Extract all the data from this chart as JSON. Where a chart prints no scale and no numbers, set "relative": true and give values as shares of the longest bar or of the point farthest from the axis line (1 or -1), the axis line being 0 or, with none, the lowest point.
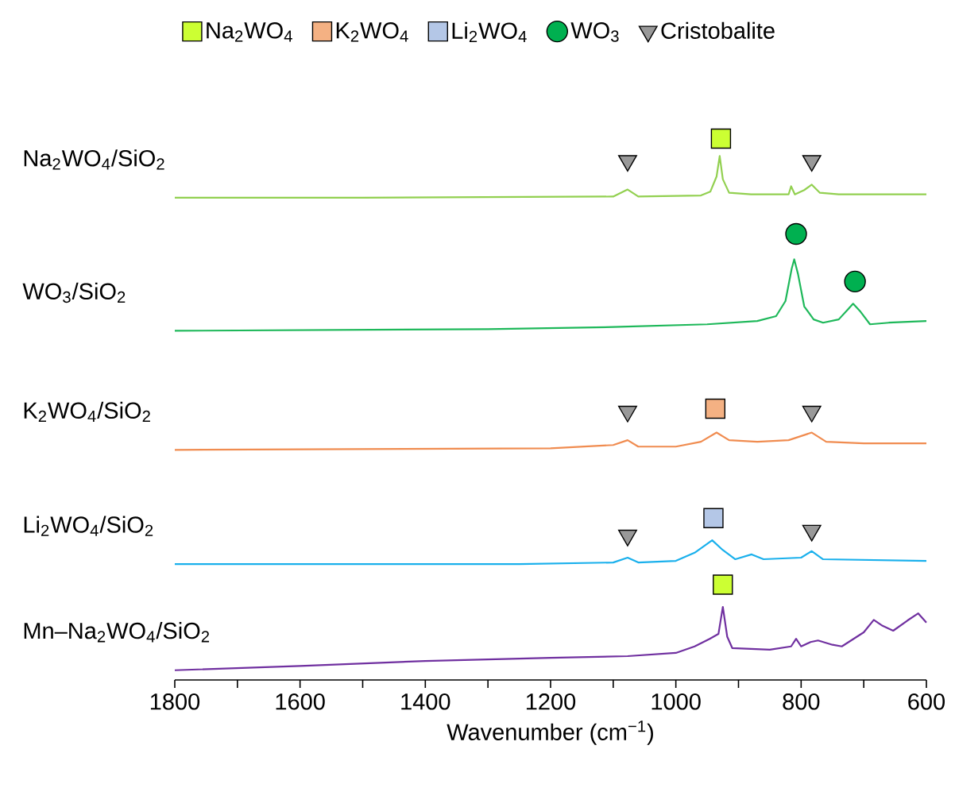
{
  "chart_data": {
    "type": "line",
    "relative": true,
    "xlabel": "Wavenumber (cm$^{−1}$)",
    "xlim": [
      1800,
      600
    ],
    "xticks": [
      1800,
      {
        "value": 1700,
        "label": null
      },
      1600,
      {
        "value": 1500,
        "label": null
      },
      1400,
      {
        "value": 1300,
        "label": null
      },
      1200,
      {
        "value": 1100,
        "label": null
      },
      1000,
      {
        "value": 900,
        "label": null
      },
      800,
      {
        "value": 700,
        "label": null
      },
      600
    ],
    "legend": "top",
    "marker": "none",
    "line_style": "solid",
    "series": [
      {
        "name": "Na$_{2}$WO$_{4}$/SiO$_{2}$",
        "color": "#92d050",
        "x": [
          1800,
          1500,
          1100,
          1077,
          1060,
          960,
          945,
          935,
          930,
          925,
          915,
          880,
          820,
          816,
          810,
          795,
          783,
          770,
          740,
          600
        ],
        "values": [
          0.891,
          0.891,
          0.893,
          0.906,
          0.893,
          0.895,
          0.902,
          0.93,
          0.968,
          0.925,
          0.9,
          0.897,
          0.897,
          0.912,
          0.897,
          0.905,
          0.915,
          0.9,
          0.897,
          0.897
        ]
      },
      {
        "name": "WO$_{3}$/SiO$_{2}$",
        "color": "#1eb85a",
        "x": [
          1800,
          1300,
          1100,
          950,
          870,
          840,
          825,
          815,
          811,
          805,
          795,
          780,
          765,
          740,
          725,
          717,
          705,
          690,
          660,
          600
        ],
        "values": [
          0.645,
          0.648,
          0.652,
          0.657,
          0.663,
          0.672,
          0.7,
          0.76,
          0.777,
          0.75,
          0.69,
          0.666,
          0.66,
          0.666,
          0.685,
          0.695,
          0.68,
          0.657,
          0.66,
          0.663
        ]
      },
      {
        "name": "K$_{2}$WO$_{4}$/SiO$_{2}$",
        "color": "#f08c50",
        "x": [
          1800,
          1200,
          1100,
          1077,
          1060,
          1000,
          960,
          935,
          915,
          870,
          820,
          783,
          760,
          700,
          600
        ],
        "values": [
          0.425,
          0.428,
          0.434,
          0.443,
          0.431,
          0.431,
          0.44,
          0.457,
          0.443,
          0.44,
          0.443,
          0.457,
          0.44,
          0.437,
          0.437
        ]
      },
      {
        "name": "Li$_{2}$WO$_{4}$/SiO$_{2}$",
        "color": "#1ab0ec",
        "x": [
          1800,
          1250,
          1100,
          1077,
          1060,
          1000,
          970,
          942,
          925,
          905,
          879,
          860,
          800,
          783,
          765,
          600
        ],
        "values": [
          0.214,
          0.214,
          0.217,
          0.226,
          0.217,
          0.22,
          0.235,
          0.258,
          0.24,
          0.223,
          0.232,
          0.223,
          0.226,
          0.238,
          0.223,
          0.22
        ]
      },
      {
        "name": "Mn–Na$_{2}$WO$_{4}$/SiO$_{2}$",
        "color": "#7030a0",
        "x": [
          1800,
          1600,
          1400,
          1200,
          1077,
          1000,
          970,
          946,
          932,
          925,
          918,
          910,
          850,
          816,
          808,
          800,
          785,
          773,
          750,
          735,
          700,
          684,
          670,
          653,
          630,
          613,
          600
        ],
        "values": [
          0.018,
          0.026,
          0.035,
          0.041,
          0.044,
          0.05,
          0.062,
          0.076,
          0.085,
          0.135,
          0.08,
          0.059,
          0.056,
          0.062,
          0.076,
          0.062,
          0.07,
          0.073,
          0.065,
          0.062,
          0.088,
          0.111,
          0.1,
          0.091,
          0.11,
          0.123,
          0.106
        ]
      },
      {
        "name": "Na$_{2}$WO$_{4}$",
        "type": "scatter",
        "marker": "square",
        "color": "#ccff33",
        "x": [
          928,
          925
        ],
        "values": [
          1.0,
          0.176
        ]
      },
      {
        "name": "K$_{2}$WO$_{4}$",
        "type": "scatter",
        "marker": "square",
        "color": "#f4b183",
        "x": [
          937
        ],
        "values": [
          0.501
        ]
      },
      {
        "name": "Li$_{2}$WO$_{4}$",
        "type": "scatter",
        "marker": "square",
        "color": "#b4c7e7",
        "x": [
          940
        ],
        "values": [
          0.299
        ]
      },
      {
        "name": "WO$_{3}$",
        "type": "scatter",
        "marker": "circle",
        "color": "#00b050",
        "x": [
          808,
          714
        ],
        "values": [
          0.824,
          0.736
        ]
      },
      {
        "name": "Cristobalite",
        "type": "scatter",
        "marker": "triangle",
        "color": "#999999",
        "x": [
          1077,
          783,
          1077,
          783,
          1077,
          783
        ],
        "values": [
          0.959,
          0.959,
          0.496,
          0.496,
          0.267,
          0.276
        ]
      }
    ]
  }
}
